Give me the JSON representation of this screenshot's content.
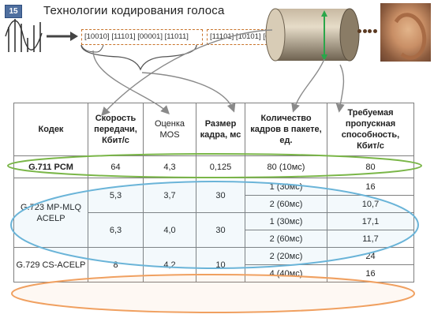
{
  "slide_number": "15",
  "title": "Технологии кодирования голоса",
  "bitstream": {
    "segment_a": "[10010] [11101] [00001] [11011]",
    "segment_b": "[11101] [10101] [00011] ["
  },
  "table": {
    "headers": {
      "codec": "Кодек",
      "rate": "Скорость передачи, Кбит/с",
      "mos": "Оценка MOS",
      "frame": "Размер кадра, мс",
      "frames_per_packet": "Количество кадров в пакете, ед.",
      "bandwidth": "Требуемая пропускная способность, Кбит/с"
    },
    "g711": {
      "codec": "G.711 PCM",
      "rate": "64",
      "mos": "4,3",
      "frame": "0,125",
      "frames": "80 (10мс)",
      "bandwidth": "80"
    },
    "g723": {
      "codec": "G.723 MP-MLQ ACELP",
      "r1": {
        "rate": "5,3",
        "mos": "3,7",
        "frame": "30"
      },
      "r2": {
        "rate": "6,3",
        "mos": "4,0",
        "frame": "30"
      },
      "rows": [
        {
          "frames": "1 (30мс)",
          "bandwidth": "16"
        },
        {
          "frames": "2 (60мс)",
          "bandwidth": "10,7"
        },
        {
          "frames": "1 (30мс)",
          "bandwidth": "17,1"
        },
        {
          "frames": "2 (60мс)",
          "bandwidth": "11,7"
        }
      ]
    },
    "g729": {
      "codec": "G.729 CS-ACELP",
      "rate": "8",
      "mos": "4,2",
      "frame": "10",
      "rows": [
        {
          "frames": "2 (20мс)",
          "bandwidth": "24"
        },
        {
          "frames": "4 (40мс)",
          "bandwidth": "16"
        }
      ]
    }
  },
  "highlight_colors": {
    "g711": "#7ab648",
    "g723": "#6ab4d8",
    "g729": "#f0a060",
    "arrows": "#8a8a8a"
  }
}
